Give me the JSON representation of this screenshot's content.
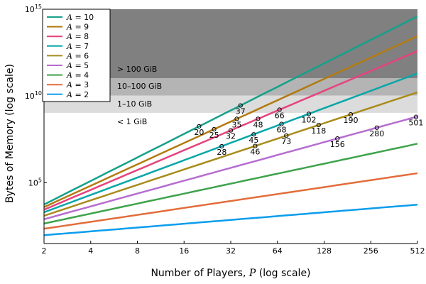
{
  "chart_data": {
    "type": "line",
    "xlabel_prefix": "Number of Players, ",
    "xlabel_var": "P",
    "xlabel_suffix": " (log scale)",
    "ylabel": "Bytes of Memory (log scale)",
    "xscale": "log2",
    "yscale": "log10",
    "xlim": [
      2,
      512
    ],
    "ylim_exp": [
      1.5,
      15
    ],
    "x_ticks": [
      2,
      4,
      8,
      16,
      32,
      64,
      128,
      256,
      512
    ],
    "y_ticks": [
      {
        "base": "10",
        "exp": "5",
        "value_exp": 5
      },
      {
        "base": "10",
        "exp": "10",
        "value_exp": 10
      },
      {
        "base": "10",
        "exp": "15",
        "value_exp": 15
      }
    ],
    "bands": [
      {
        "label": "< 1 GiB",
        "from_exp": 1.5,
        "to_exp": 9.03,
        "color": "#ffffff"
      },
      {
        "label": "1–10 GiB",
        "from_exp": 9.03,
        "to_exp": 10.03,
        "color": "#dcdcdc"
      },
      {
        "label": "10–100 GiB",
        "from_exp": 10.03,
        "to_exp": 11.03,
        "color": "#b4b4b4"
      },
      {
        "label": "> 100 GiB",
        "from_exp": 11.03,
        "to_exp": 15,
        "color": "#808080"
      }
    ],
    "series": [
      {
        "name": "A = 10",
        "var": "A",
        "value": "10",
        "color": "#16a08a",
        "y_at_2": 3.75,
        "slope": 1.355
      },
      {
        "name": "A = 9",
        "var": "A",
        "value": "9",
        "color": "#b17b10",
        "y_at_2": 3.6,
        "slope": 1.231
      },
      {
        "name": "A = 8",
        "var": "A",
        "value": "8",
        "color": "#e5437e",
        "y_at_2": 3.45,
        "slope": 1.142
      },
      {
        "name": "A = 7",
        "var": "A",
        "value": "7",
        "color": "#08a6a8",
        "y_at_2": 3.3,
        "slope": 1.0
      },
      {
        "name": "A = 6",
        "var": "A",
        "value": "6",
        "color": "#a88b1a",
        "y_at_2": 3.1,
        "slope": 0.889
      },
      {
        "name": "A = 5",
        "var": "A",
        "value": "5",
        "color": "#b66dd0",
        "y_at_2": 2.9,
        "slope": 0.74
      },
      {
        "name": "A = 4",
        "var": "A",
        "value": "4",
        "color": "#3ea34c",
        "y_at_2": 2.65,
        "slope": 0.575
      },
      {
        "name": "A = 3",
        "var": "A",
        "value": "3",
        "color": "#e26c3a",
        "y_at_2": 2.35,
        "slope": 0.4
      },
      {
        "name": "A = 2",
        "var": "A",
        "value": "2",
        "color": "#0b9ded",
        "y_at_2": 1.98,
        "slope": 0.22
      }
    ],
    "markers": [
      {
        "series": "A = 10",
        "x": 20,
        "label": "20"
      },
      {
        "series": "A = 10",
        "x": 37,
        "label": "37"
      },
      {
        "series": "A = 9",
        "x": 25,
        "label": "25"
      },
      {
        "series": "A = 9",
        "x": 35,
        "label": "35"
      },
      {
        "series": "A = 8",
        "x": 32,
        "label": "32"
      },
      {
        "series": "A = 8",
        "x": 48,
        "label": "48"
      },
      {
        "series": "A = 8",
        "x": 66,
        "label": "66"
      },
      {
        "series": "A = 7",
        "x": 28,
        "label": "28"
      },
      {
        "series": "A = 7",
        "x": 45,
        "label": "45"
      },
      {
        "series": "A = 7",
        "x": 68,
        "label": "68"
      },
      {
        "series": "A = 7",
        "x": 102,
        "label": "102"
      },
      {
        "series": "A = 6",
        "x": 46,
        "label": "46"
      },
      {
        "series": "A = 6",
        "x": 73,
        "label": "73"
      },
      {
        "series": "A = 6",
        "x": 118,
        "label": "118"
      },
      {
        "series": "A = 6",
        "x": 190,
        "label": "190"
      },
      {
        "series": "A = 5",
        "x": 156,
        "label": "156"
      },
      {
        "series": "A = 5",
        "x": 280,
        "label": "280"
      },
      {
        "series": "A = 5",
        "x": 501,
        "label": "501"
      }
    ]
  }
}
